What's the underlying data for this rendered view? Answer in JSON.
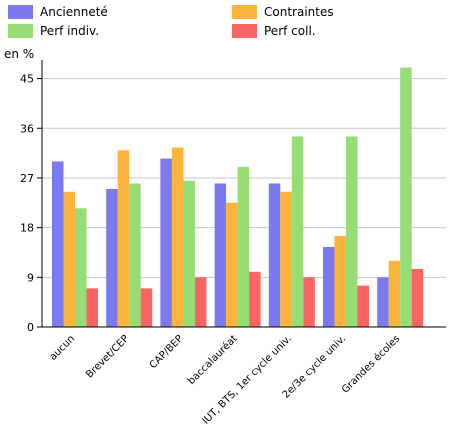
{
  "chart_data": {
    "type": "bar",
    "y_unit_label": "en %",
    "categories": [
      "aucun",
      "Brevet/CEP",
      "CAP/BEP",
      "baccalauréat",
      "IUT, BTS, 1er cycle univ.",
      "2e/3e cycle univ.",
      "Grandes écoles"
    ],
    "series": [
      {
        "name": "Ancienneté",
        "color": "#7b7bef",
        "values": [
          30,
          25,
          30.5,
          26,
          26,
          14.5,
          9
        ]
      },
      {
        "name": "Contraintes",
        "color": "#fbb43c",
        "values": [
          24.5,
          32,
          32.5,
          22.5,
          24.5,
          16.5,
          12
        ]
      },
      {
        "name": "Perf indiv.",
        "color": "#95dd74",
        "values": [
          21.5,
          26,
          26.5,
          29,
          34.5,
          34.5,
          47
        ]
      },
      {
        "name": "Perf coll.",
        "color": "#fb6464",
        "values": [
          7,
          7,
          9,
          10,
          9,
          7.5,
          10.5
        ]
      }
    ],
    "y_ticks": [
      0,
      9,
      18,
      27,
      36,
      45
    ],
    "ylim": [
      0,
      48
    ],
    "grid": true,
    "legend_position": "top"
  }
}
